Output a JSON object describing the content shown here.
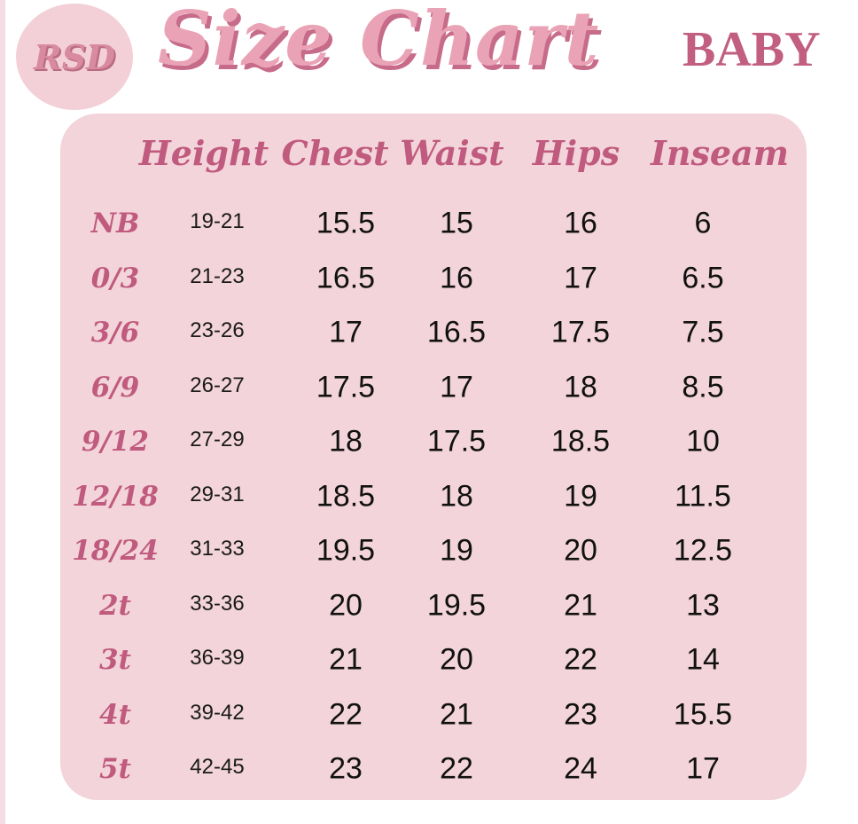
{
  "logo": {
    "text": "RSD"
  },
  "title": "Size Chart",
  "subtitle": "BABY",
  "colors": {
    "panel": "#f2d4da",
    "accent": "#c05a7e",
    "title": "#eaa3b6"
  },
  "headers": [
    "Height",
    "Chest",
    "Waist",
    "Hips",
    "Inseam"
  ],
  "rows": [
    {
      "size": "NB",
      "height": "19-21",
      "chest": "15.5",
      "waist": "15",
      "hips": "16",
      "inseam": "6"
    },
    {
      "size": "0/3",
      "height": "21-23",
      "chest": "16.5",
      "waist": "16",
      "hips": "17",
      "inseam": "6.5"
    },
    {
      "size": "3/6",
      "height": "23-26",
      "chest": "17",
      "waist": "16.5",
      "hips": "17.5",
      "inseam": "7.5"
    },
    {
      "size": "6/9",
      "height": "26-27",
      "chest": "17.5",
      "waist": "17",
      "hips": "18",
      "inseam": "8.5"
    },
    {
      "size": "9/12",
      "height": "27-29",
      "chest": "18",
      "waist": "17.5",
      "hips": "18.5",
      "inseam": "10"
    },
    {
      "size": "12/18",
      "height": "29-31",
      "chest": "18.5",
      "waist": "18",
      "hips": "19",
      "inseam": "11.5"
    },
    {
      "size": "18/24",
      "height": "31-33",
      "chest": "19.5",
      "waist": "19",
      "hips": "20",
      "inseam": "12.5"
    },
    {
      "size": "2t",
      "height": "33-36",
      "chest": "20",
      "waist": "19.5",
      "hips": "21",
      "inseam": "13"
    },
    {
      "size": "3t",
      "height": "36-39",
      "chest": "21",
      "waist": "20",
      "hips": "22",
      "inseam": "14"
    },
    {
      "size": "4t",
      "height": "39-42",
      "chest": "22",
      "waist": "21",
      "hips": "23",
      "inseam": "15.5"
    },
    {
      "size": "5t",
      "height": "42-45",
      "chest": "23",
      "waist": "22",
      "hips": "24",
      "inseam": "17"
    }
  ]
}
